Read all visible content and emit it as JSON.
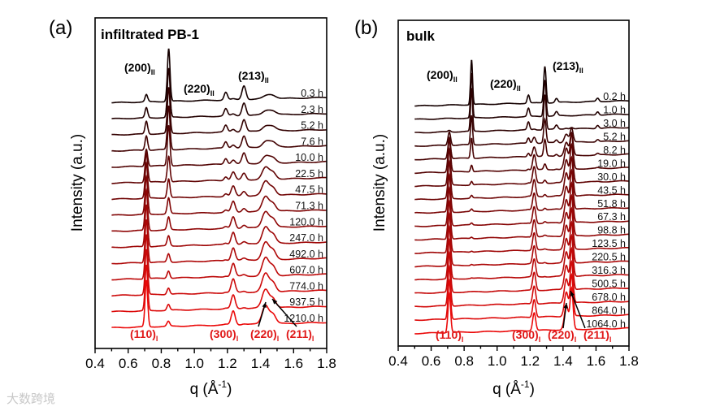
{
  "figure": {
    "watermark": "大数跨境"
  },
  "chart_data": [
    {
      "type": "line",
      "panel_label": "(a)",
      "title": "infiltrated PB-1",
      "xlabel_main": "q (Å",
      "xlabel_sup": "-1",
      "xlabel_end": ")",
      "ylabel": "Intensity (a.u.)",
      "xlim": [
        0.4,
        1.8
      ],
      "xticks": [
        0.4,
        0.6,
        0.8,
        1.0,
        1.2,
        1.4,
        1.6,
        1.8
      ],
      "xtick_labels": [
        "0.4",
        "0.6",
        "0.8",
        "1.0",
        "1.2",
        "1.4",
        "1.6",
        "1.8"
      ],
      "peaks_form_II": [
        {
          "q": 0.845,
          "height": 68,
          "width": 0.008
        },
        {
          "q": 1.19,
          "height": 10,
          "width": 0.01
        },
        {
          "q": 1.3,
          "height": 18,
          "width": 0.012
        },
        {
          "q": 1.46,
          "height": 5,
          "width": 0.03
        },
        {
          "q": 0.71,
          "height": 6,
          "width": 0.008
        }
      ],
      "peaks_form_I": [
        {
          "q": 0.71,
          "height": 60,
          "width": 0.008
        },
        {
          "q": 0.84,
          "height": 3,
          "width": 0.008
        },
        {
          "q": 1.235,
          "height": 18,
          "width": 0.012
        },
        {
          "q": 1.43,
          "height": 24,
          "width": 0.02
        },
        {
          "q": 1.475,
          "height": 12,
          "width": 0.018
        }
      ],
      "traces": [
        {
          "label": "0.3 h",
          "form_I_fraction": 0.05
        },
        {
          "label": "2.3 h",
          "form_I_fraction": 0.12
        },
        {
          "label": "5.2 h",
          "form_I_fraction": 0.18
        },
        {
          "label": "7.6 h",
          "form_I_fraction": 0.22
        },
        {
          "label": "10.0 h",
          "form_I_fraction": 0.28
        },
        {
          "label": "22.5 h",
          "form_I_fraction": 0.55
        },
        {
          "label": "47.5 h",
          "form_I_fraction": 0.68
        },
        {
          "label": "71.3 h",
          "form_I_fraction": 0.74
        },
        {
          "label": "120.0 h",
          "form_I_fraction": 0.8
        },
        {
          "label": "247.0 h",
          "form_I_fraction": 0.85
        },
        {
          "label": "492.0 h",
          "form_I_fraction": 0.88
        },
        {
          "label": "607.0 h",
          "form_I_fraction": 0.9
        },
        {
          "label": "774.0 h",
          "form_I_fraction": 0.92
        },
        {
          "label": "937.5 h",
          "form_I_fraction": 0.93
        },
        {
          "label": "1210.0 h",
          "form_I_fraction": 0.95
        }
      ],
      "peak_labels_form_II": [
        {
          "text": "(200)",
          "sub": "II"
        },
        {
          "text": "(220)",
          "sub": "II"
        },
        {
          "text": "(213)",
          "sub": "II"
        }
      ],
      "peak_labels_form_I": [
        {
          "text": "(110)",
          "sub": "I"
        },
        {
          "text": "(300)",
          "sub": "I"
        },
        {
          "text": "(220)",
          "sub": "I"
        },
        {
          "text": "(211)",
          "sub": "I"
        }
      ]
    },
    {
      "type": "line",
      "panel_label": "(b)",
      "title": "bulk",
      "xlabel_main": "q (Å",
      "xlabel_sup": "-1",
      "xlabel_end": ")",
      "ylabel": "Intensity (a.u.)",
      "xlim": [
        0.4,
        1.8
      ],
      "xticks": [
        0.4,
        0.6,
        0.8,
        1.0,
        1.2,
        1.4,
        1.6,
        1.8
      ],
      "xtick_labels": [
        "0.4",
        "0.6",
        "0.8",
        "1.0",
        "1.2",
        "1.4",
        "1.6",
        "1.8"
      ],
      "peaks_form_II": [
        {
          "q": 0.845,
          "height": 55,
          "width": 0.006
        },
        {
          "q": 1.19,
          "height": 10,
          "width": 0.007
        },
        {
          "q": 1.29,
          "height": 45,
          "width": 0.007
        },
        {
          "q": 1.36,
          "height": 5,
          "width": 0.008
        },
        {
          "q": 1.61,
          "height": 4,
          "width": 0.008
        }
      ],
      "peaks_form_I": [
        {
          "q": 0.71,
          "height": 48,
          "width": 0.008
        },
        {
          "q": 1.225,
          "height": 22,
          "width": 0.009
        },
        {
          "q": 1.42,
          "height": 30,
          "width": 0.012
        },
        {
          "q": 1.452,
          "height": 50,
          "width": 0.009
        }
      ],
      "traces": [
        {
          "label": "0.2 h",
          "form_I_fraction": 0.0
        },
        {
          "label": "1.0 h",
          "form_I_fraction": 0.0
        },
        {
          "label": "3.0 h",
          "form_I_fraction": 0.04
        },
        {
          "label": "5.2 h",
          "form_I_fraction": 0.35
        },
        {
          "label": "8.2 h",
          "form_I_fraction": 0.55
        },
        {
          "label": "19.0 h",
          "form_I_fraction": 0.85
        },
        {
          "label": "30.0 h",
          "form_I_fraction": 0.92
        },
        {
          "label": "43.5 h",
          "form_I_fraction": 0.94
        },
        {
          "label": "51.8 h",
          "form_I_fraction": 0.95
        },
        {
          "label": "67.3 h",
          "form_I_fraction": 0.96
        },
        {
          "label": "98.8 h",
          "form_I_fraction": 0.97
        },
        {
          "label": "123.5 h",
          "form_I_fraction": 0.98
        },
        {
          "label": "220.5 h",
          "form_I_fraction": 0.98
        },
        {
          "label": "316.3 h",
          "form_I_fraction": 0.99
        },
        {
          "label": "500.5 h",
          "form_I_fraction": 1.0
        },
        {
          "label": "678.0 h",
          "form_I_fraction": 1.0
        },
        {
          "label": "864.0 h",
          "form_I_fraction": 1.0
        },
        {
          "label": "1064.0 h",
          "form_I_fraction": 1.0
        }
      ],
      "peak_labels_form_II": [
        {
          "text": "(200)",
          "sub": "II"
        },
        {
          "text": "(220)",
          "sub": "II"
        },
        {
          "text": "(213)",
          "sub": "II"
        }
      ],
      "peak_labels_form_I": [
        {
          "text": "(110)",
          "sub": "I"
        },
        {
          "text": "(300)",
          "sub": "I"
        },
        {
          "text": "(220)",
          "sub": "I"
        },
        {
          "text": "(211)",
          "sub": "I"
        }
      ]
    }
  ]
}
